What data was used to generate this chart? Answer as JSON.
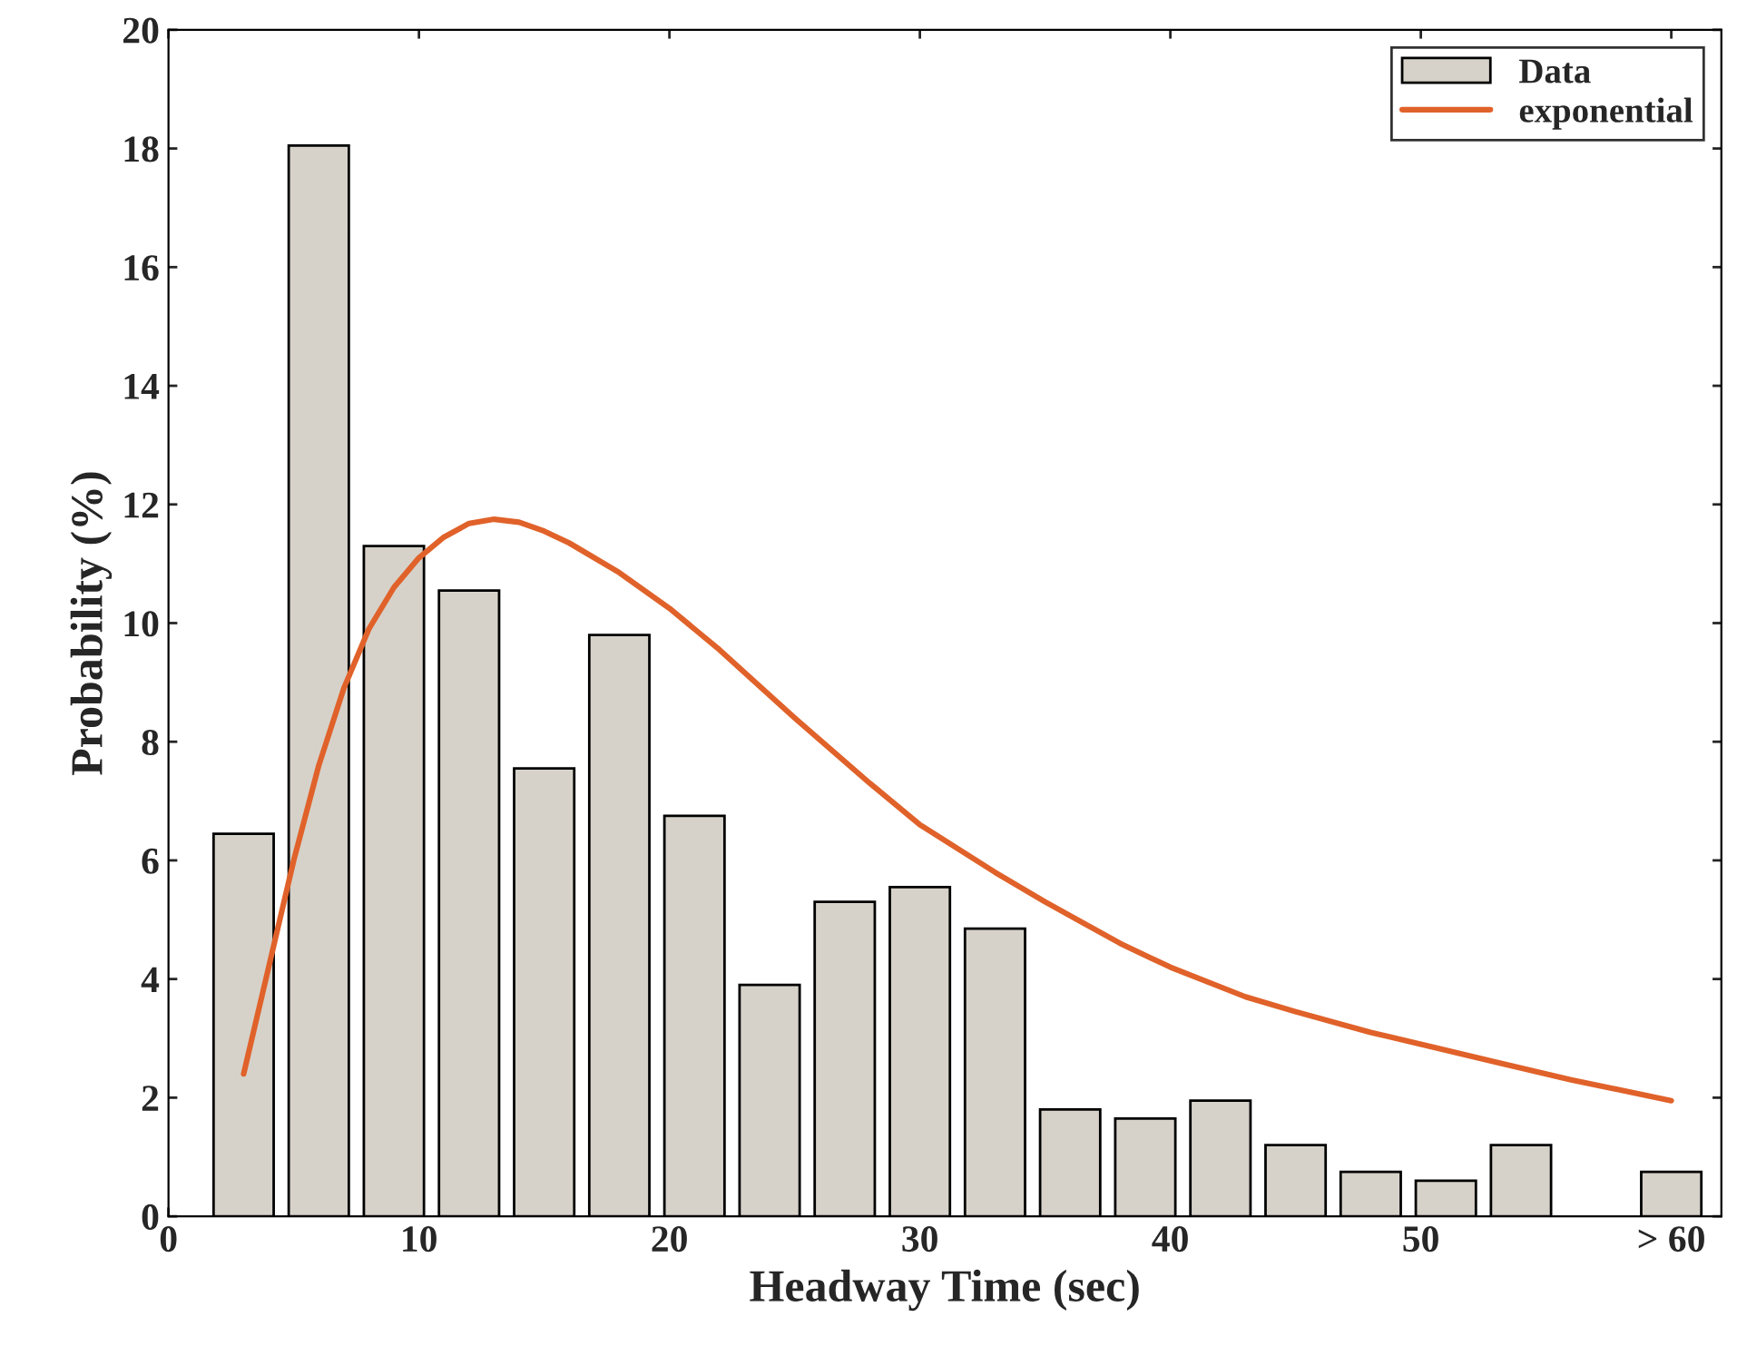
{
  "chart_data": {
    "type": "bar",
    "xlabel": "Headway Time (sec)",
    "ylabel": "Probability (%)",
    "xlim": [
      0,
      62
    ],
    "ylim": [
      0,
      20
    ],
    "xticks": [
      0,
      10,
      20,
      30,
      40,
      50,
      {
        "value": 60,
        "label": "> 60"
      }
    ],
    "yticks": [
      0,
      2,
      4,
      6,
      8,
      10,
      12,
      14,
      16,
      18,
      20
    ],
    "grid": false,
    "legend": "top right",
    "series": [
      {
        "name": "Data",
        "color": "#d6d2ca",
        "x": [
          3,
          6,
          9,
          12,
          15,
          18,
          21,
          24,
          27,
          30,
          33,
          36,
          39,
          42,
          45,
          48,
          51,
          54,
          57,
          60
        ],
        "values": [
          6.45,
          18.05,
          11.3,
          10.55,
          7.55,
          9.8,
          6.75,
          3.9,
          5.3,
          5.55,
          4.85,
          1.8,
          1.65,
          1.95,
          1.2,
          0.75,
          0.6,
          1.2,
          null,
          0.75
        ]
      },
      {
        "name": "exponential",
        "type": "line",
        "color": "#e0622a",
        "x": [
          3,
          4,
          5,
          6,
          7,
          8,
          9,
          10,
          11,
          12,
          13,
          14,
          15,
          16,
          18,
          20,
          22,
          25,
          28,
          30,
          33,
          35,
          38,
          40,
          43,
          45,
          48,
          50,
          53,
          56,
          60
        ],
        "values": [
          2.4,
          4.2,
          6.0,
          7.6,
          8.9,
          9.9,
          10.6,
          11.1,
          11.45,
          11.68,
          11.75,
          11.7,
          11.55,
          11.35,
          10.85,
          10.25,
          9.55,
          8.4,
          7.3,
          6.6,
          5.8,
          5.3,
          4.6,
          4.2,
          3.7,
          3.45,
          3.1,
          2.9,
          2.6,
          2.3,
          1.95
        ]
      }
    ]
  }
}
